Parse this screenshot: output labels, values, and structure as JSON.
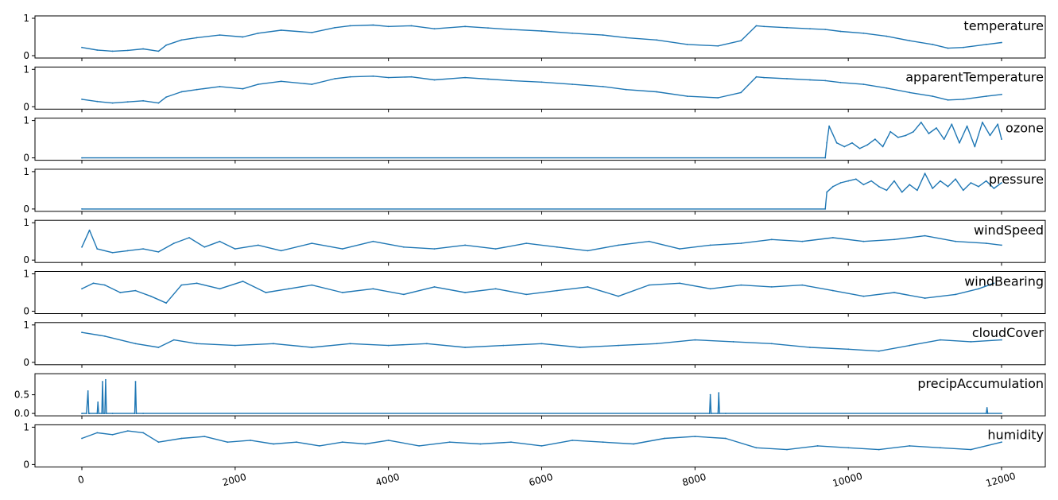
{
  "chart_data": {
    "type": "line",
    "series_color": "#1f77b4",
    "x_range": [
      0,
      12000
    ],
    "x_ticks": [
      "0",
      "2000",
      "4000",
      "6000",
      "8000",
      "10000",
      "12000"
    ],
    "x_tick_values": [
      0,
      2000,
      4000,
      6000,
      8000,
      10000,
      12000
    ],
    "x_tick_rotation": "-15deg",
    "grid": false,
    "panels": [
      {
        "title": "temperature",
        "ylim": [
          0,
          1
        ],
        "y_ticks": [
          "0",
          "1"
        ],
        "y_tick_values": [
          0,
          1
        ],
        "x": [
          0,
          200,
          400,
          600,
          800,
          1000,
          1100,
          1300,
          1500,
          1800,
          2100,
          2300,
          2600,
          3000,
          3300,
          3500,
          3800,
          4000,
          4300,
          4600,
          5000,
          5300,
          5600,
          6000,
          6400,
          6800,
          7100,
          7500,
          7900,
          8300,
          8600,
          8800,
          8900,
          9200,
          9500,
          9700,
          9900,
          10200,
          10500,
          10800,
          11100,
          11300,
          11500,
          11800,
          12000
        ],
        "y": [
          0.22,
          0.15,
          0.12,
          0.14,
          0.18,
          0.12,
          0.28,
          0.42,
          0.48,
          0.55,
          0.5,
          0.6,
          0.68,
          0.62,
          0.75,
          0.8,
          0.82,
          0.78,
          0.8,
          0.72,
          0.78,
          0.74,
          0.7,
          0.66,
          0.6,
          0.55,
          0.48,
          0.42,
          0.3,
          0.26,
          0.4,
          0.8,
          0.78,
          0.75,
          0.72,
          0.7,
          0.65,
          0.6,
          0.52,
          0.4,
          0.3,
          0.2,
          0.22,
          0.3,
          0.35
        ]
      },
      {
        "title": "apparentTemperature",
        "ylim": [
          0,
          1
        ],
        "y_ticks": [
          "0",
          "1"
        ],
        "y_tick_values": [
          0,
          1
        ],
        "x": [
          0,
          200,
          400,
          600,
          800,
          1000,
          1100,
          1300,
          1500,
          1800,
          2100,
          2300,
          2600,
          3000,
          3300,
          3500,
          3800,
          4000,
          4300,
          4600,
          5000,
          5300,
          5600,
          6000,
          6400,
          6800,
          7100,
          7500,
          7900,
          8300,
          8600,
          8800,
          8900,
          9200,
          9500,
          9700,
          9900,
          10200,
          10500,
          10800,
          11100,
          11300,
          11500,
          11800,
          12000
        ],
        "y": [
          0.2,
          0.14,
          0.1,
          0.13,
          0.16,
          0.1,
          0.26,
          0.4,
          0.46,
          0.54,
          0.48,
          0.6,
          0.68,
          0.6,
          0.75,
          0.8,
          0.82,
          0.78,
          0.8,
          0.72,
          0.78,
          0.74,
          0.7,
          0.66,
          0.6,
          0.54,
          0.46,
          0.4,
          0.28,
          0.24,
          0.38,
          0.8,
          0.78,
          0.75,
          0.72,
          0.7,
          0.65,
          0.6,
          0.5,
          0.38,
          0.28,
          0.18,
          0.2,
          0.28,
          0.33
        ]
      },
      {
        "title": "ozone",
        "ylim": [
          0,
          1
        ],
        "y_ticks": [
          "0",
          "1"
        ],
        "y_tick_values": [
          0,
          1
        ],
        "x": [
          0,
          9700,
          9720,
          9750,
          9850,
          9950,
          10050,
          10150,
          10250,
          10350,
          10450,
          10550,
          10650,
          10750,
          10850,
          10950,
          11050,
          11150,
          11250,
          11350,
          11450,
          11550,
          11650,
          11750,
          11850,
          11950,
          12000
        ],
        "y": [
          0.0,
          0.0,
          0.4,
          0.85,
          0.4,
          0.3,
          0.4,
          0.25,
          0.35,
          0.5,
          0.3,
          0.7,
          0.55,
          0.6,
          0.7,
          0.95,
          0.65,
          0.8,
          0.5,
          0.9,
          0.4,
          0.85,
          0.3,
          0.95,
          0.6,
          0.9,
          0.5
        ]
      },
      {
        "title": "pressure",
        "ylim": [
          0,
          1
        ],
        "y_ticks": [
          "0",
          "1"
        ],
        "y_tick_values": [
          0,
          1
        ],
        "x": [
          0,
          9700,
          9720,
          9800,
          9900,
          10000,
          10100,
          10200,
          10300,
          10400,
          10500,
          10600,
          10700,
          10800,
          10900,
          11000,
          11100,
          11200,
          11300,
          11400,
          11500,
          11600,
          11700,
          11800,
          11900,
          12000
        ],
        "y": [
          0.0,
          0.0,
          0.45,
          0.6,
          0.7,
          0.75,
          0.8,
          0.65,
          0.75,
          0.6,
          0.5,
          0.75,
          0.45,
          0.65,
          0.5,
          0.95,
          0.55,
          0.75,
          0.6,
          0.8,
          0.5,
          0.7,
          0.6,
          0.75,
          0.55,
          0.7
        ]
      },
      {
        "title": "windSpeed",
        "ylim": [
          0,
          1
        ],
        "y_ticks": [
          "0",
          "1"
        ],
        "y_tick_values": [
          0,
          1
        ],
        "x": [
          0,
          100,
          200,
          400,
          600,
          800,
          1000,
          1200,
          1400,
          1600,
          1800,
          2000,
          2300,
          2600,
          3000,
          3400,
          3800,
          4200,
          4600,
          5000,
          5400,
          5800,
          6200,
          6600,
          7000,
          7400,
          7800,
          8200,
          8600,
          9000,
          9400,
          9800,
          10200,
          10600,
          11000,
          11400,
          11800,
          12000
        ],
        "y": [
          0.35,
          0.8,
          0.3,
          0.2,
          0.25,
          0.3,
          0.22,
          0.45,
          0.6,
          0.35,
          0.5,
          0.3,
          0.4,
          0.25,
          0.45,
          0.3,
          0.5,
          0.35,
          0.3,
          0.4,
          0.3,
          0.45,
          0.35,
          0.25,
          0.4,
          0.5,
          0.3,
          0.4,
          0.45,
          0.55,
          0.5,
          0.6,
          0.5,
          0.55,
          0.65,
          0.5,
          0.45,
          0.4
        ]
      },
      {
        "title": "windBearing",
        "ylim": [
          0,
          1
        ],
        "y_ticks": [
          "0",
          "1"
        ],
        "y_tick_values": [
          0,
          1
        ],
        "x": [
          0,
          150,
          300,
          500,
          700,
          900,
          1100,
          1300,
          1500,
          1800,
          2100,
          2400,
          2700,
          3000,
          3400,
          3800,
          4200,
          4600,
          5000,
          5400,
          5800,
          6200,
          6600,
          7000,
          7400,
          7800,
          8200,
          8600,
          9000,
          9400,
          9800,
          10200,
          10600,
          11000,
          11400,
          11700,
          11900
        ],
        "y": [
          0.6,
          0.75,
          0.7,
          0.5,
          0.55,
          0.4,
          0.22,
          0.7,
          0.75,
          0.6,
          0.8,
          0.5,
          0.6,
          0.7,
          0.5,
          0.6,
          0.45,
          0.65,
          0.5,
          0.6,
          0.45,
          0.55,
          0.65,
          0.4,
          0.7,
          0.75,
          0.6,
          0.7,
          0.65,
          0.7,
          0.55,
          0.4,
          0.5,
          0.35,
          0.45,
          0.6,
          0.75
        ]
      },
      {
        "title": "cloudCover",
        "ylim": [
          0,
          1
        ],
        "y_ticks": [
          "0",
          "1"
        ],
        "y_tick_values": [
          0,
          1
        ],
        "x": [
          0,
          300,
          700,
          1000,
          1200,
          1500,
          2000,
          2500,
          3000,
          3500,
          4000,
          4500,
          5000,
          5500,
          6000,
          6500,
          7000,
          7500,
          8000,
          8500,
          9000,
          9500,
          10000,
          10400,
          10800,
          11200,
          11600,
          12000
        ],
        "y": [
          0.8,
          0.7,
          0.5,
          0.4,
          0.6,
          0.5,
          0.45,
          0.5,
          0.4,
          0.5,
          0.45,
          0.5,
          0.4,
          0.45,
          0.5,
          0.4,
          0.45,
          0.5,
          0.6,
          0.55,
          0.5,
          0.4,
          0.35,
          0.3,
          0.45,
          0.6,
          0.55,
          0.6
        ]
      },
      {
        "title": "precipAccumulation",
        "ylim": [
          0,
          1
        ],
        "y_ticks": [
          "0.0",
          "0.5"
        ],
        "y_tick_values": [
          0,
          0.5
        ],
        "x": [
          0,
          60,
          80,
          90,
          100,
          200,
          210,
          220,
          260,
          270,
          280,
          300,
          310,
          320,
          400,
          690,
          700,
          710,
          800,
          8190,
          8200,
          8210,
          8300,
          8310,
          8320,
          8400,
          11800,
          11810,
          11820,
          12000
        ],
        "y": [
          0.0,
          0.0,
          0.6,
          0.0,
          0.0,
          0.0,
          0.3,
          0.0,
          0.0,
          0.85,
          0.0,
          0.0,
          0.9,
          0.0,
          0.0,
          0.0,
          0.85,
          0.0,
          0.0,
          0.0,
          0.5,
          0.0,
          0.0,
          0.55,
          0.0,
          0.0,
          0.0,
          0.15,
          0.0,
          0.0
        ]
      },
      {
        "title": "humidity",
        "ylim": [
          0,
          1
        ],
        "y_ticks": [
          "0",
          "1"
        ],
        "y_tick_values": [
          0,
          1
        ],
        "x": [
          0,
          200,
          400,
          600,
          800,
          1000,
          1300,
          1600,
          1900,
          2200,
          2500,
          2800,
          3100,
          3400,
          3700,
          4000,
          4400,
          4800,
          5200,
          5600,
          6000,
          6400,
          6800,
          7200,
          7600,
          8000,
          8400,
          8800,
          9200,
          9600,
          10000,
          10400,
          10800,
          11200,
          11600,
          12000
        ],
        "y": [
          0.7,
          0.85,
          0.8,
          0.9,
          0.85,
          0.6,
          0.7,
          0.75,
          0.6,
          0.65,
          0.55,
          0.6,
          0.5,
          0.6,
          0.55,
          0.65,
          0.5,
          0.6,
          0.55,
          0.6,
          0.5,
          0.65,
          0.6,
          0.55,
          0.7,
          0.75,
          0.7,
          0.45,
          0.4,
          0.5,
          0.45,
          0.4,
          0.5,
          0.45,
          0.4,
          0.6
        ]
      }
    ]
  }
}
